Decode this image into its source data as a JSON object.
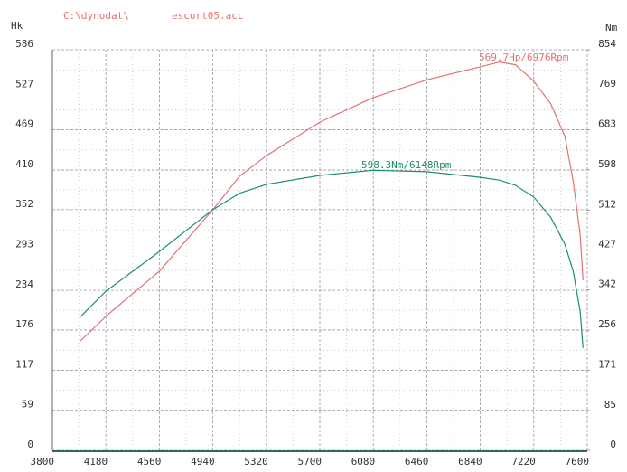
{
  "chart_data": {
    "type": "line",
    "path": "C:\\dynodat\\",
    "file": "escort05.acc",
    "ylabel": "Hk",
    "y2label": "Nm",
    "annotations": [
      "569.7Hp/6976Rpm",
      "598.3Nm/6148Rpm"
    ],
    "x": [
      4000,
      4180,
      4560,
      4940,
      5130,
      5320,
      5700,
      6080,
      6460,
      6840,
      6976,
      7090,
      7220,
      7340,
      7440,
      7500,
      7550,
      7570
    ],
    "series": [
      {
        "name": "Hp",
        "color": "#e07272",
        "values": [
          160,
          196,
          262,
          352,
          401,
          431,
          480,
          516,
          542,
          561,
          568,
          564,
          540,
          507,
          460,
          394,
          315,
          249
        ]
      },
      {
        "name": "Nm",
        "color": "#1a8f6e",
        "axis": "y2",
        "values": [
          285,
          339,
          424,
          513,
          548,
          567,
          586,
          597,
          594,
          582,
          576,
          565,
          540,
          497,
          440,
          382,
          295,
          218
        ]
      }
    ],
    "xlim": [
      3800,
      7600
    ],
    "xticks": [
      3800,
      4180,
      4560,
      4940,
      5320,
      5700,
      6080,
      6460,
      6840,
      7220,
      7600
    ],
    "ylim": [
      0,
      586
    ],
    "yticks": [
      0,
      59,
      117,
      176,
      234,
      293,
      352,
      410,
      469,
      527,
      586
    ],
    "y2lim": [
      0,
      854
    ],
    "y2ticks": [
      0,
      85,
      171,
      256,
      342,
      427,
      512,
      598,
      683,
      769,
      854
    ],
    "grid": true
  }
}
